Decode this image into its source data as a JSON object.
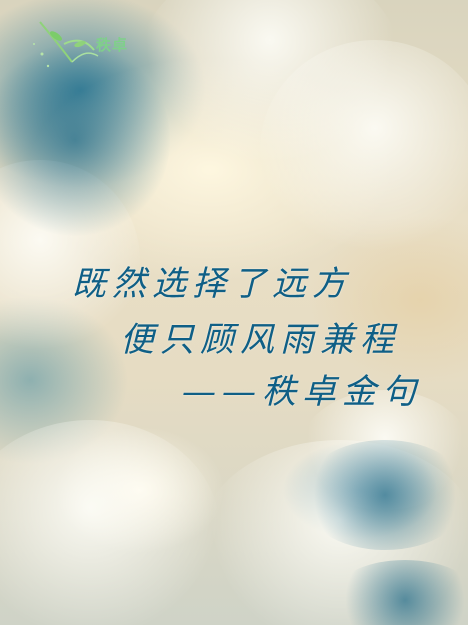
{
  "logo": {
    "icon": "leaf-swirl-logo-icon",
    "text": "秩卓",
    "color": "#7fd08a"
  },
  "quote": {
    "line1": "既然选择了远方",
    "line2": "便只顾风雨兼程",
    "attribution": "——秩卓金句",
    "color": "#0f5f86"
  }
}
